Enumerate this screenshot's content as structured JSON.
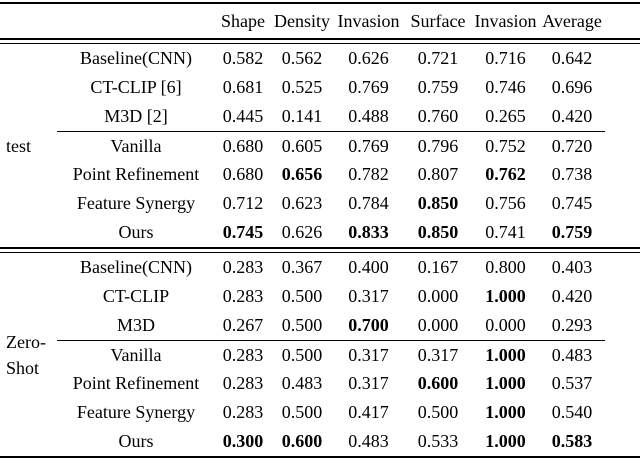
{
  "colors": {
    "text": "#000000",
    "background": "#ffffff",
    "rule": "#000000"
  },
  "table": {
    "columns": [
      "Shape",
      "Density",
      "Invasion",
      "Surface",
      "Invasion",
      "Average"
    ],
    "sections": [
      {
        "group_lines": [
          "test"
        ],
        "midrule_before_row": 3,
        "rows": [
          {
            "method": "Baseline(CNN)",
            "values": [
              "0.582",
              "0.562",
              "0.626",
              "0.721",
              "0.716",
              "0.642"
            ],
            "bold": [
              false,
              false,
              false,
              false,
              false,
              false
            ]
          },
          {
            "method": "CT-CLIP [6]",
            "values": [
              "0.681",
              "0.525",
              "0.769",
              "0.759",
              "0.746",
              "0.696"
            ],
            "bold": [
              false,
              false,
              false,
              false,
              false,
              false
            ]
          },
          {
            "method": "M3D [2]",
            "values": [
              "0.445",
              "0.141",
              "0.488",
              "0.760",
              "0.265",
              "0.420"
            ],
            "bold": [
              false,
              false,
              false,
              false,
              false,
              false
            ]
          },
          {
            "method": "Vanilla",
            "values": [
              "0.680",
              "0.605",
              "0.769",
              "0.796",
              "0.752",
              "0.720"
            ],
            "bold": [
              false,
              false,
              false,
              false,
              false,
              false
            ]
          },
          {
            "method": "Point Refinement",
            "values": [
              "0.680",
              "0.656",
              "0.782",
              "0.807",
              "0.762",
              "0.738"
            ],
            "bold": [
              false,
              true,
              false,
              false,
              true,
              false
            ]
          },
          {
            "method": "Feature Synergy",
            "values": [
              "0.712",
              "0.623",
              "0.784",
              "0.850",
              "0.756",
              "0.745"
            ],
            "bold": [
              false,
              false,
              false,
              true,
              false,
              false
            ]
          },
          {
            "method": "Ours",
            "values": [
              "0.745",
              "0.626",
              "0.833",
              "0.850",
              "0.741",
              "0.759"
            ],
            "bold": [
              true,
              false,
              true,
              true,
              false,
              true
            ]
          }
        ]
      },
      {
        "group_lines": [
          "Zero-",
          "Shot"
        ],
        "midrule_before_row": 3,
        "rows": [
          {
            "method": "Baseline(CNN)",
            "values": [
              "0.283",
              "0.367",
              "0.400",
              "0.167",
              "0.800",
              "0.403"
            ],
            "bold": [
              false,
              false,
              false,
              false,
              false,
              false
            ]
          },
          {
            "method": "CT-CLIP",
            "values": [
              "0.283",
              "0.500",
              "0.317",
              "0.000",
              "1.000",
              "0.420"
            ],
            "bold": [
              false,
              false,
              false,
              false,
              true,
              false
            ]
          },
          {
            "method": "M3D",
            "values": [
              "0.267",
              "0.500",
              "0.700",
              "0.000",
              "0.000",
              "0.293"
            ],
            "bold": [
              false,
              false,
              true,
              false,
              false,
              false
            ]
          },
          {
            "method": "Vanilla",
            "values": [
              "0.283",
              "0.500",
              "0.317",
              "0.317",
              "1.000",
              "0.483"
            ],
            "bold": [
              false,
              false,
              false,
              false,
              true,
              false
            ]
          },
          {
            "method": "Point Refinement",
            "values": [
              "0.283",
              "0.483",
              "0.317",
              "0.600",
              "1.000",
              "0.537"
            ],
            "bold": [
              false,
              false,
              false,
              true,
              true,
              false
            ]
          },
          {
            "method": "Feature Synergy",
            "values": [
              "0.283",
              "0.500",
              "0.417",
              "0.500",
              "1.000",
              "0.540"
            ],
            "bold": [
              false,
              false,
              false,
              false,
              true,
              false
            ]
          },
          {
            "method": "Ours",
            "values": [
              "0.300",
              "0.600",
              "0.483",
              "0.533",
              "1.000",
              "0.583"
            ],
            "bold": [
              true,
              true,
              false,
              false,
              true,
              true
            ]
          }
        ]
      }
    ]
  }
}
